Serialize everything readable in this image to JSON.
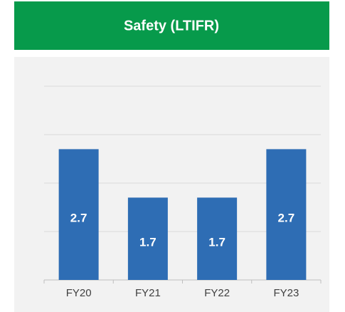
{
  "chart_data": {
    "type": "bar",
    "title": "Safety (LTIFR)",
    "categories": [
      "FY20",
      "FY21",
      "FY22",
      "FY23"
    ],
    "values": [
      2.7,
      1.7,
      1.7,
      2.7
    ],
    "color": "#2e6db4",
    "ylim": [
      0,
      4
    ],
    "yticks": [
      0,
      1,
      2,
      3,
      4
    ],
    "grid": true,
    "header_color": "#079a4b"
  }
}
